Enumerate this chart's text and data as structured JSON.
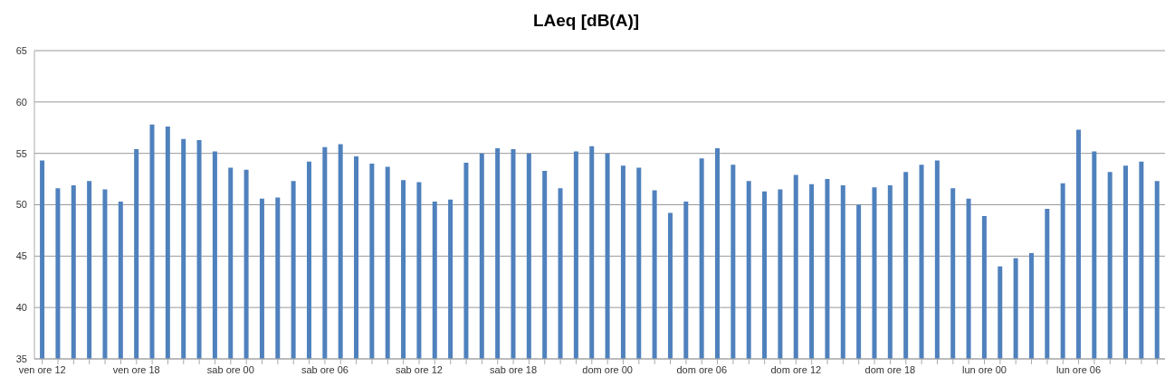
{
  "chart_data": {
    "type": "bar",
    "title": "LAeq [dB(A)]",
    "categories": [
      "ven ore 12",
      null,
      null,
      null,
      null,
      null,
      "ven ore 18",
      null,
      null,
      null,
      null,
      null,
      "sab ore 00",
      null,
      null,
      null,
      null,
      null,
      "sab ore 06",
      null,
      null,
      null,
      null,
      null,
      "sab ore 12",
      null,
      null,
      null,
      null,
      null,
      "sab ore 18",
      null,
      null,
      null,
      null,
      null,
      "dom ore 00",
      null,
      null,
      null,
      null,
      null,
      "dom ore 06",
      null,
      null,
      null,
      null,
      null,
      "dom ore 12",
      null,
      null,
      null,
      null,
      null,
      "dom ore 18",
      null,
      null,
      null,
      null,
      null,
      "lun ore 00",
      null,
      null,
      null,
      null,
      null,
      "lun ore 06",
      null,
      null,
      null,
      null,
      null
    ],
    "values": [
      54.3,
      51.6,
      51.9,
      52.3,
      51.5,
      50.3,
      55.4,
      57.8,
      57.6,
      56.4,
      56.3,
      55.2,
      53.6,
      53.4,
      50.6,
      50.7,
      52.3,
      54.2,
      55.6,
      55.9,
      54.7,
      54.0,
      53.7,
      52.4,
      52.2,
      50.3,
      50.5,
      54.1,
      55.0,
      55.5,
      55.4,
      55.0,
      53.3,
      51.6,
      55.2,
      55.7,
      55.0,
      53.8,
      53.6,
      51.4,
      49.2,
      50.3,
      54.5,
      55.5,
      53.9,
      52.3,
      51.3,
      51.5,
      52.9,
      52.0,
      52.5,
      51.9,
      50.0,
      51.7,
      51.9,
      53.2,
      53.9,
      54.3,
      51.6,
      50.6,
      48.9,
      44.0,
      44.8,
      45.3,
      49.6,
      52.1,
      57.3,
      55.2,
      53.2,
      53.8,
      54.2,
      52.3
    ],
    "color": "#4f81bd",
    "ylim": [
      35,
      65
    ],
    "yticks": [
      35,
      40,
      45,
      50,
      55,
      60,
      65
    ],
    "grid": "y"
  }
}
